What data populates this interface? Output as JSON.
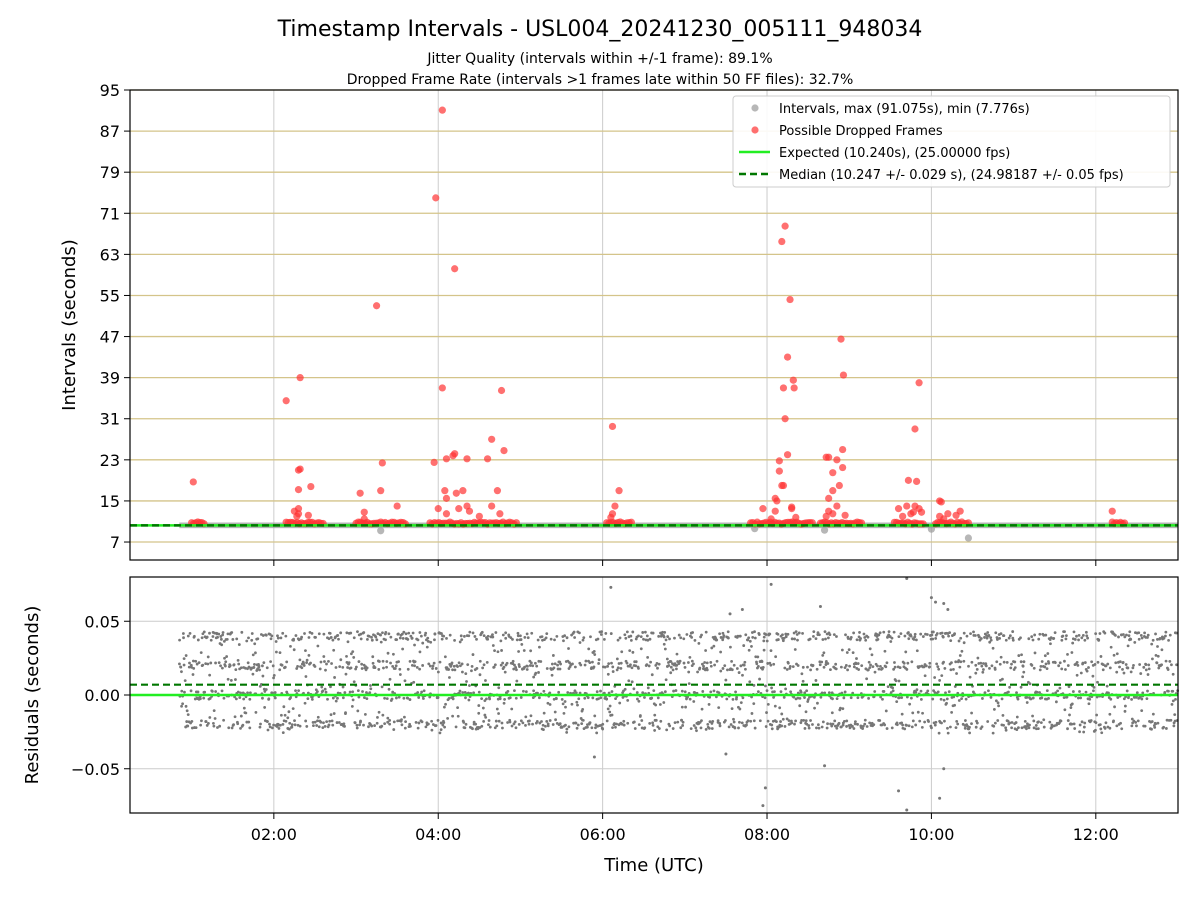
{
  "title": "Timestamp Intervals - USL004_20241230_005111_948034",
  "subtitle_1": "Jitter Quality (intervals within +/-1 frame): 89.1%",
  "subtitle_2": "Dropped Frame Rate (intervals >1 frames late within 50 FF files): 32.7%",
  "colors": {
    "intervals": "#999999",
    "dropped": "#ff3333",
    "expected": "#22ee22",
    "median": "#007700",
    "hgrid": "#d4c48a",
    "vgrid": "#cccccc",
    "residuals": "#777777"
  },
  "chart_data": [
    {
      "type": "scatter",
      "ylabel": "Intervals (seconds)",
      "xlim_hours": [
        0.25,
        13.0
      ],
      "ylim": [
        3.5,
        95
      ],
      "yticks": [
        7,
        15,
        23,
        31,
        39,
        47,
        55,
        63,
        71,
        79,
        87,
        95
      ],
      "grid": "horizontal-and-vertical",
      "legend": "top-right",
      "legend_entries": [
        "Intervals, max (91.075s), min (7.776s)",
        "Possible Dropped Frames",
        "Expected (10.240s), (25.00000 fps)",
        "Median (10.247 +/- 0.029 s), (24.98187 +/- 0.05 fps)"
      ],
      "expected_interval": 10.24,
      "median_interval": 10.247,
      "intervals_max": 91.075,
      "intervals_min": 7.776,
      "nominal_band": [
        [
          0.85,
          13.0
        ]
      ],
      "dropped_clusters": [
        [
          1.0,
          1.15
        ],
        [
          2.15,
          2.6
        ],
        [
          3.0,
          3.6
        ],
        [
          3.9,
          4.95
        ],
        [
          6.05,
          6.35
        ],
        [
          7.8,
          8.55
        ],
        [
          8.65,
          9.15
        ],
        [
          9.55,
          9.9
        ],
        [
          10.05,
          10.45
        ],
        [
          12.2,
          12.35
        ]
      ],
      "intervals_outliers": [
        [
          3.3,
          9.2
        ],
        [
          8.7,
          9.3
        ],
        [
          10.45,
          7.776
        ],
        [
          7.85,
          9.6
        ],
        [
          10.0,
          9.5
        ]
      ],
      "dropped_frames": [
        [
          1.02,
          18.7
        ],
        [
          2.15,
          34.5
        ],
        [
          2.25,
          13.0
        ],
        [
          2.3,
          21.0
        ],
        [
          2.32,
          21.2
        ],
        [
          2.3,
          17.2
        ],
        [
          2.32,
          39.0
        ],
        [
          2.3,
          13.5
        ],
        [
          2.3,
          12.5
        ],
        [
          2.45,
          17.8
        ],
        [
          2.42,
          12.2
        ],
        [
          2.28,
          12.0
        ],
        [
          3.05,
          16.5
        ],
        [
          3.1,
          12.8
        ],
        [
          3.25,
          53.0
        ],
        [
          3.3,
          17.0
        ],
        [
          3.32,
          22.4
        ],
        [
          3.5,
          14.0
        ],
        [
          3.1,
          11.5
        ],
        [
          3.95,
          22.5
        ],
        [
          3.97,
          74.0
        ],
        [
          4.05,
          91.075
        ],
        [
          4.05,
          37.0
        ],
        [
          4.08,
          17.0
        ],
        [
          4.1,
          23.2
        ],
        [
          4.18,
          23.8
        ],
        [
          4.2,
          24.2
        ],
        [
          4.2,
          60.2
        ],
        [
          4.1,
          15.5
        ],
        [
          4.22,
          16.5
        ],
        [
          4.3,
          17.0
        ],
        [
          4.35,
          23.2
        ],
        [
          4.25,
          13.5
        ],
        [
          4.38,
          13.0
        ],
        [
          4.6,
          23.2
        ],
        [
          4.65,
          27.0
        ],
        [
          4.65,
          14.0
        ],
        [
          4.72,
          17.0
        ],
        [
          4.75,
          12.5
        ],
        [
          4.77,
          36.5
        ],
        [
          4.8,
          24.8
        ],
        [
          4.0,
          13.5
        ],
        [
          4.35,
          14.0
        ],
        [
          4.5,
          12.0
        ],
        [
          4.1,
          12.5
        ],
        [
          6.12,
          29.5
        ],
        [
          6.15,
          14.0
        ],
        [
          6.2,
          17.0
        ],
        [
          6.12,
          12.5
        ],
        [
          6.1,
          11.8
        ],
        [
          7.95,
          13.5
        ],
        [
          8.05,
          11.5
        ],
        [
          8.1,
          15.5
        ],
        [
          8.12,
          15.0
        ],
        [
          8.15,
          22.8
        ],
        [
          8.18,
          18.0
        ],
        [
          8.2,
          18.0
        ],
        [
          8.15,
          20.8
        ],
        [
          8.18,
          65.5
        ],
        [
          8.22,
          68.5
        ],
        [
          8.22,
          31.0
        ],
        [
          8.25,
          24.0
        ],
        [
          8.2,
          37.0
        ],
        [
          8.25,
          43.0
        ],
        [
          8.28,
          54.2
        ],
        [
          8.32,
          38.5
        ],
        [
          8.33,
          37.0
        ],
        [
          8.3,
          13.5
        ],
        [
          8.1,
          13.0
        ],
        [
          8.35,
          11.8
        ],
        [
          8.3,
          13.8
        ],
        [
          8.72,
          23.5
        ],
        [
          8.75,
          23.5
        ],
        [
          8.8,
          20.5
        ],
        [
          8.85,
          23.0
        ],
        [
          8.88,
          18.0
        ],
        [
          8.9,
          46.5
        ],
        [
          8.92,
          21.5
        ],
        [
          8.92,
          25.0
        ],
        [
          8.93,
          39.5
        ],
        [
          8.75,
          15.5
        ],
        [
          8.8,
          17.0
        ],
        [
          8.85,
          14.0
        ],
        [
          8.75,
          13.0
        ],
        [
          8.8,
          12.5
        ],
        [
          8.95,
          12.2
        ],
        [
          8.72,
          12.0
        ],
        [
          9.6,
          13.5
        ],
        [
          9.7,
          14.0
        ],
        [
          9.72,
          19.0
        ],
        [
          9.78,
          12.8
        ],
        [
          9.8,
          29.0
        ],
        [
          9.82,
          18.8
        ],
        [
          9.85,
          38.0
        ],
        [
          9.8,
          14.0
        ],
        [
          9.85,
          13.5
        ],
        [
          9.75,
          12.5
        ],
        [
          9.88,
          12.8
        ],
        [
          9.65,
          12.0
        ],
        [
          10.1,
          15.0
        ],
        [
          10.12,
          14.8
        ],
        [
          10.15,
          11.5
        ],
        [
          10.2,
          12.5
        ],
        [
          10.35,
          13.0
        ],
        [
          10.1,
          12.0
        ],
        [
          10.3,
          12.2
        ],
        [
          12.2,
          13.0
        ]
      ]
    },
    {
      "type": "scatter",
      "xlabel": "Time (UTC)",
      "ylabel": "Residuals (seconds)",
      "xlim_hours": [
        0.25,
        13.0
      ],
      "ylim": [
        -0.08,
        0.08
      ],
      "yticks": [
        -0.05,
        0.0,
        0.05
      ],
      "ytick_labels": [
        "−0.05",
        "0.00",
        "0.05"
      ],
      "xticks_hours": [
        2,
        4,
        6,
        8,
        10,
        12
      ],
      "xtick_labels": [
        "02:00",
        "04:00",
        "06:00",
        "08:00",
        "10:00",
        "12:00"
      ],
      "grid": "horizontal-and-vertical",
      "expected_residual": 0.0,
      "median_residual": 0.007,
      "residual_span_hours": [
        0.85,
        13.0
      ],
      "residual_bands": [
        -0.02,
        0.0,
        0.02,
        0.04
      ],
      "residual_spread": 0.034,
      "residual_outliers": [
        [
          6.1,
          0.073
        ],
        [
          7.7,
          0.058
        ],
        [
          7.98,
          -0.063
        ],
        [
          7.95,
          -0.075
        ],
        [
          8.05,
          0.075
        ],
        [
          8.65,
          0.06
        ],
        [
          8.7,
          -0.048
        ],
        [
          9.6,
          -0.065
        ],
        [
          9.7,
          0.079
        ],
        [
          9.7,
          -0.078
        ],
        [
          10.0,
          0.066
        ],
        [
          10.05,
          0.063
        ],
        [
          10.1,
          -0.07
        ],
        [
          10.15,
          0.062
        ],
        [
          10.2,
          0.058
        ],
        [
          10.15,
          -0.05
        ],
        [
          7.55,
          0.055
        ],
        [
          5.9,
          -0.042
        ],
        [
          7.5,
          -0.04
        ]
      ]
    }
  ]
}
